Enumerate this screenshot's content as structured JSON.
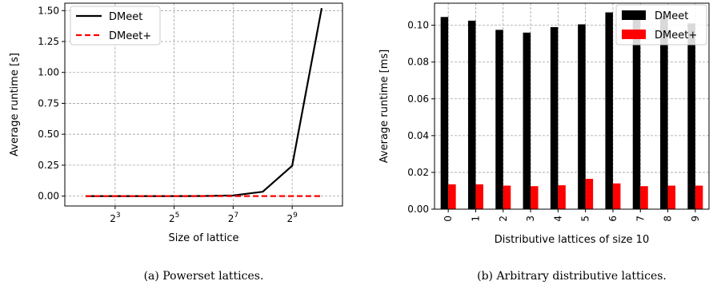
{
  "chart_data": [
    {
      "type": "line",
      "caption": "(a) Powerset lattices.",
      "xlabel": "Size of lattice",
      "ylabel": "Average runtime [s]",
      "x_scale": "log2",
      "x": [
        4,
        8,
        16,
        32,
        64,
        128,
        256,
        512,
        1024
      ],
      "xlim": [
        4,
        1024
      ],
      "x_ticks": [
        {
          "value": 8,
          "base": "2",
          "exp": "3"
        },
        {
          "value": 32,
          "base": "2",
          "exp": "5"
        },
        {
          "value": 128,
          "base": "2",
          "exp": "7"
        },
        {
          "value": 512,
          "base": "2",
          "exp": "9"
        }
      ],
      "ylim": [
        -0.08,
        1.56
      ],
      "y_ticks": [
        "0.00",
        "0.25",
        "0.50",
        "0.75",
        "1.00",
        "1.25",
        "1.50"
      ],
      "grid": true,
      "legend": "top-left",
      "series": [
        {
          "name": "DMeet",
          "color": "#000000",
          "style": "solid",
          "values": [
            0.0,
            0.0,
            0.0,
            0.0,
            0.001,
            0.005,
            0.035,
            0.245,
            1.52
          ]
        },
        {
          "name": "DMeet+",
          "color": "#ff0000",
          "style": "dashed",
          "values": [
            0.0,
            0.0,
            0.0,
            0.0,
            0.0,
            0.0,
            0.0,
            0.0,
            0.0
          ]
        }
      ]
    },
    {
      "type": "bar",
      "caption": "(b) Arbitrary distributive lattices.",
      "xlabel": "Distributive lattices of size 10",
      "ylabel": "Average runtime [ms]",
      "categories": [
        "0",
        "1",
        "2",
        "3",
        "4",
        "5",
        "6",
        "7",
        "8",
        "9"
      ],
      "ylim": [
        0,
        0.112
      ],
      "y_ticks": [
        "0.00",
        "0.02",
        "0.04",
        "0.06",
        "0.08",
        "0.10"
      ],
      "grid": true,
      "legend": "top-right",
      "series": [
        {
          "name": "DMeet",
          "color": "#000000",
          "values": [
            0.1045,
            0.1025,
            0.0975,
            0.096,
            0.099,
            0.1005,
            0.107,
            0.107,
            0.105,
            0.101
          ]
        },
        {
          "name": "DMeet+",
          "color": "#ff0000",
          "values": [
            0.0135,
            0.0135,
            0.0128,
            0.0125,
            0.013,
            0.0165,
            0.014,
            0.0125,
            0.0128,
            0.0128
          ]
        }
      ]
    }
  ]
}
